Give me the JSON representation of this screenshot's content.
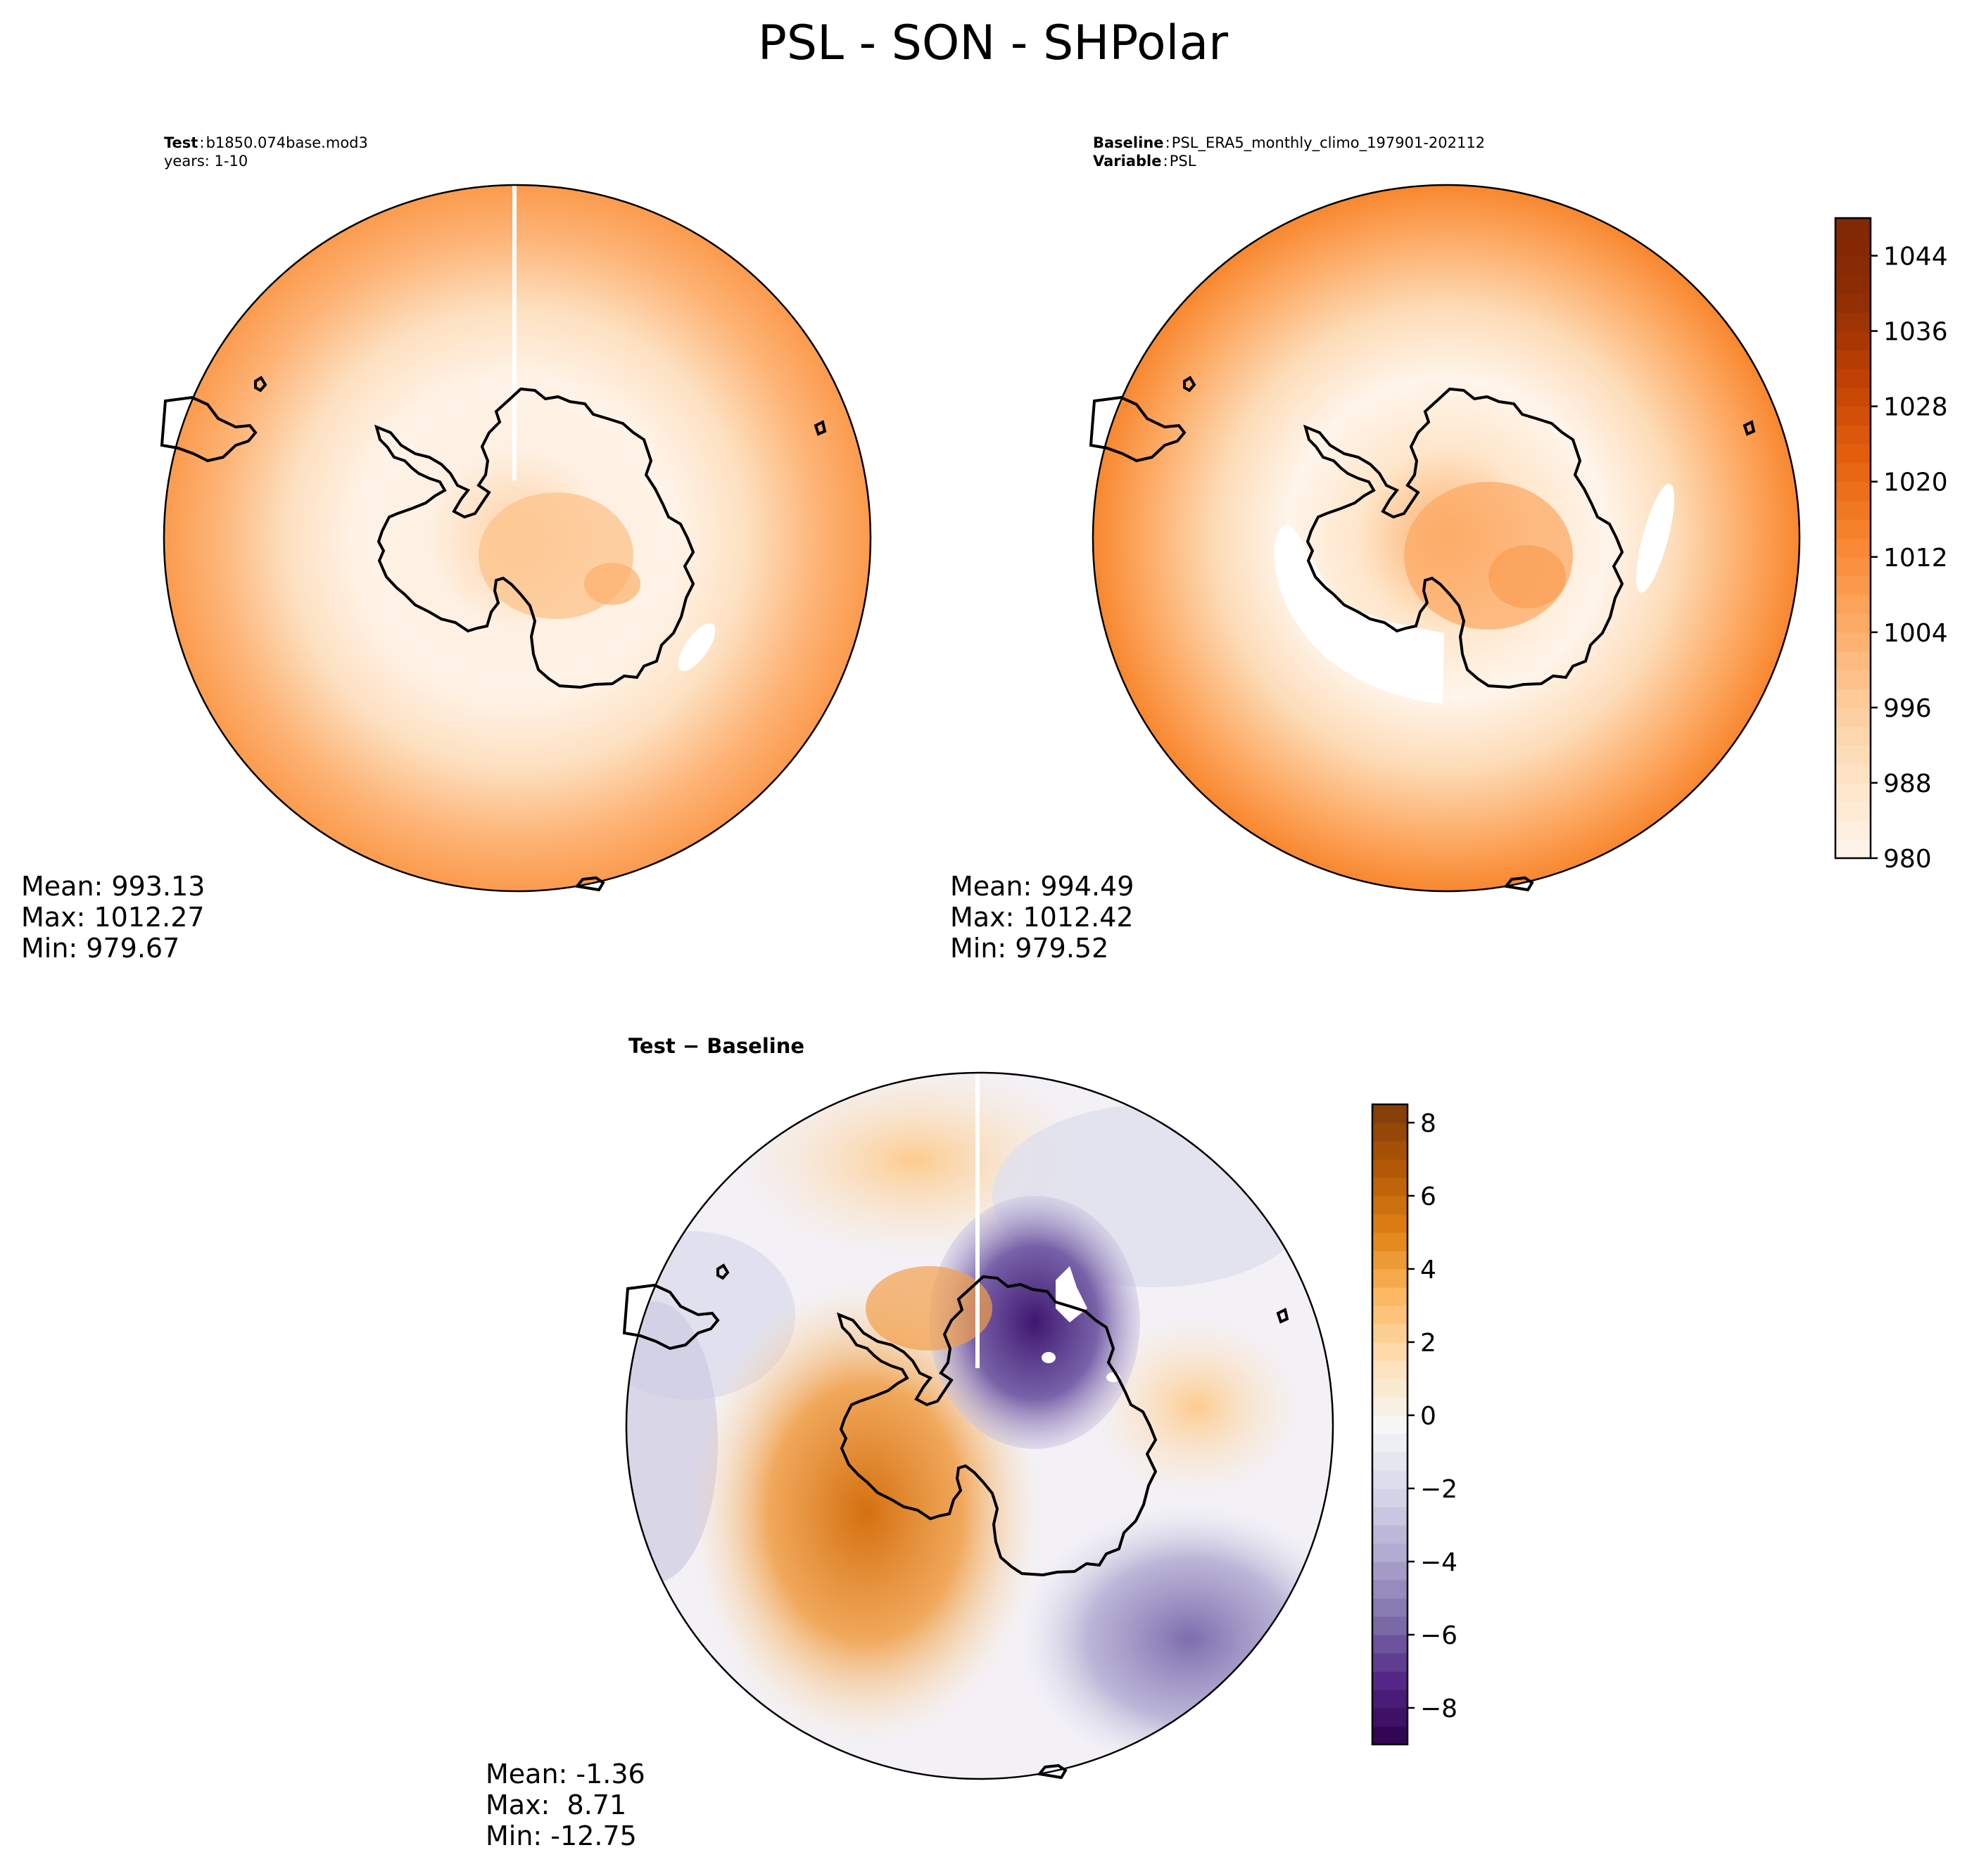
{
  "figure": {
    "title": "PSL - SON - SHPolar"
  },
  "panels": {
    "test": {
      "label_bold": "Test",
      "label_value": "b1850.074base.mod3",
      "years": "years: 1-10",
      "mean": "Mean: 993.13",
      "max": "Max: 1012.27",
      "min": "Min: 979.67"
    },
    "baseline": {
      "label_bold": "Baseline",
      "label_value": "PSL_ERA5_monthly_climo_197901-202112",
      "variable_bold": "Variable",
      "variable_value": "PSL",
      "mean": "Mean: 994.49",
      "max": "Max: 1012.42",
      "min": "Min: 979.52"
    },
    "diff": {
      "title_a": "Test",
      "title_op": " − ",
      "title_b": "Baseline",
      "mean": "Mean: -1.36",
      "max": "Max:  8.71",
      "min": "Min: -12.75"
    }
  },
  "colorbars": {
    "abs": {
      "ticks": [
        "980",
        "988",
        "996",
        "1004",
        "1012",
        "1020",
        "1028",
        "1036",
        "1044"
      ],
      "range": [
        980,
        1048
      ],
      "colormap": "Oranges",
      "colors": [
        "#fff5eb",
        "#fde4c6",
        "#fdca98",
        "#fda862",
        "#f8852f",
        "#e4600e",
        "#c14003",
        "#8f2d04",
        "#7f2704"
      ]
    },
    "diff": {
      "ticks": [
        "−8",
        "−6",
        "−4",
        "−2",
        "0",
        "2",
        "4",
        "6",
        "8"
      ],
      "range": [
        -9,
        8.5
      ],
      "colormap": "PuOr_r",
      "colors": [
        "#2d004b",
        "#542788",
        "#8073ac",
        "#b2abd2",
        "#d8daeb",
        "#f7f7f7",
        "#fee0b6",
        "#fdb863",
        "#e08214",
        "#b35806",
        "#7f3b08"
      ]
    }
  },
  "icons": {
    "coastline": "antarctica-coastline-outline"
  }
}
